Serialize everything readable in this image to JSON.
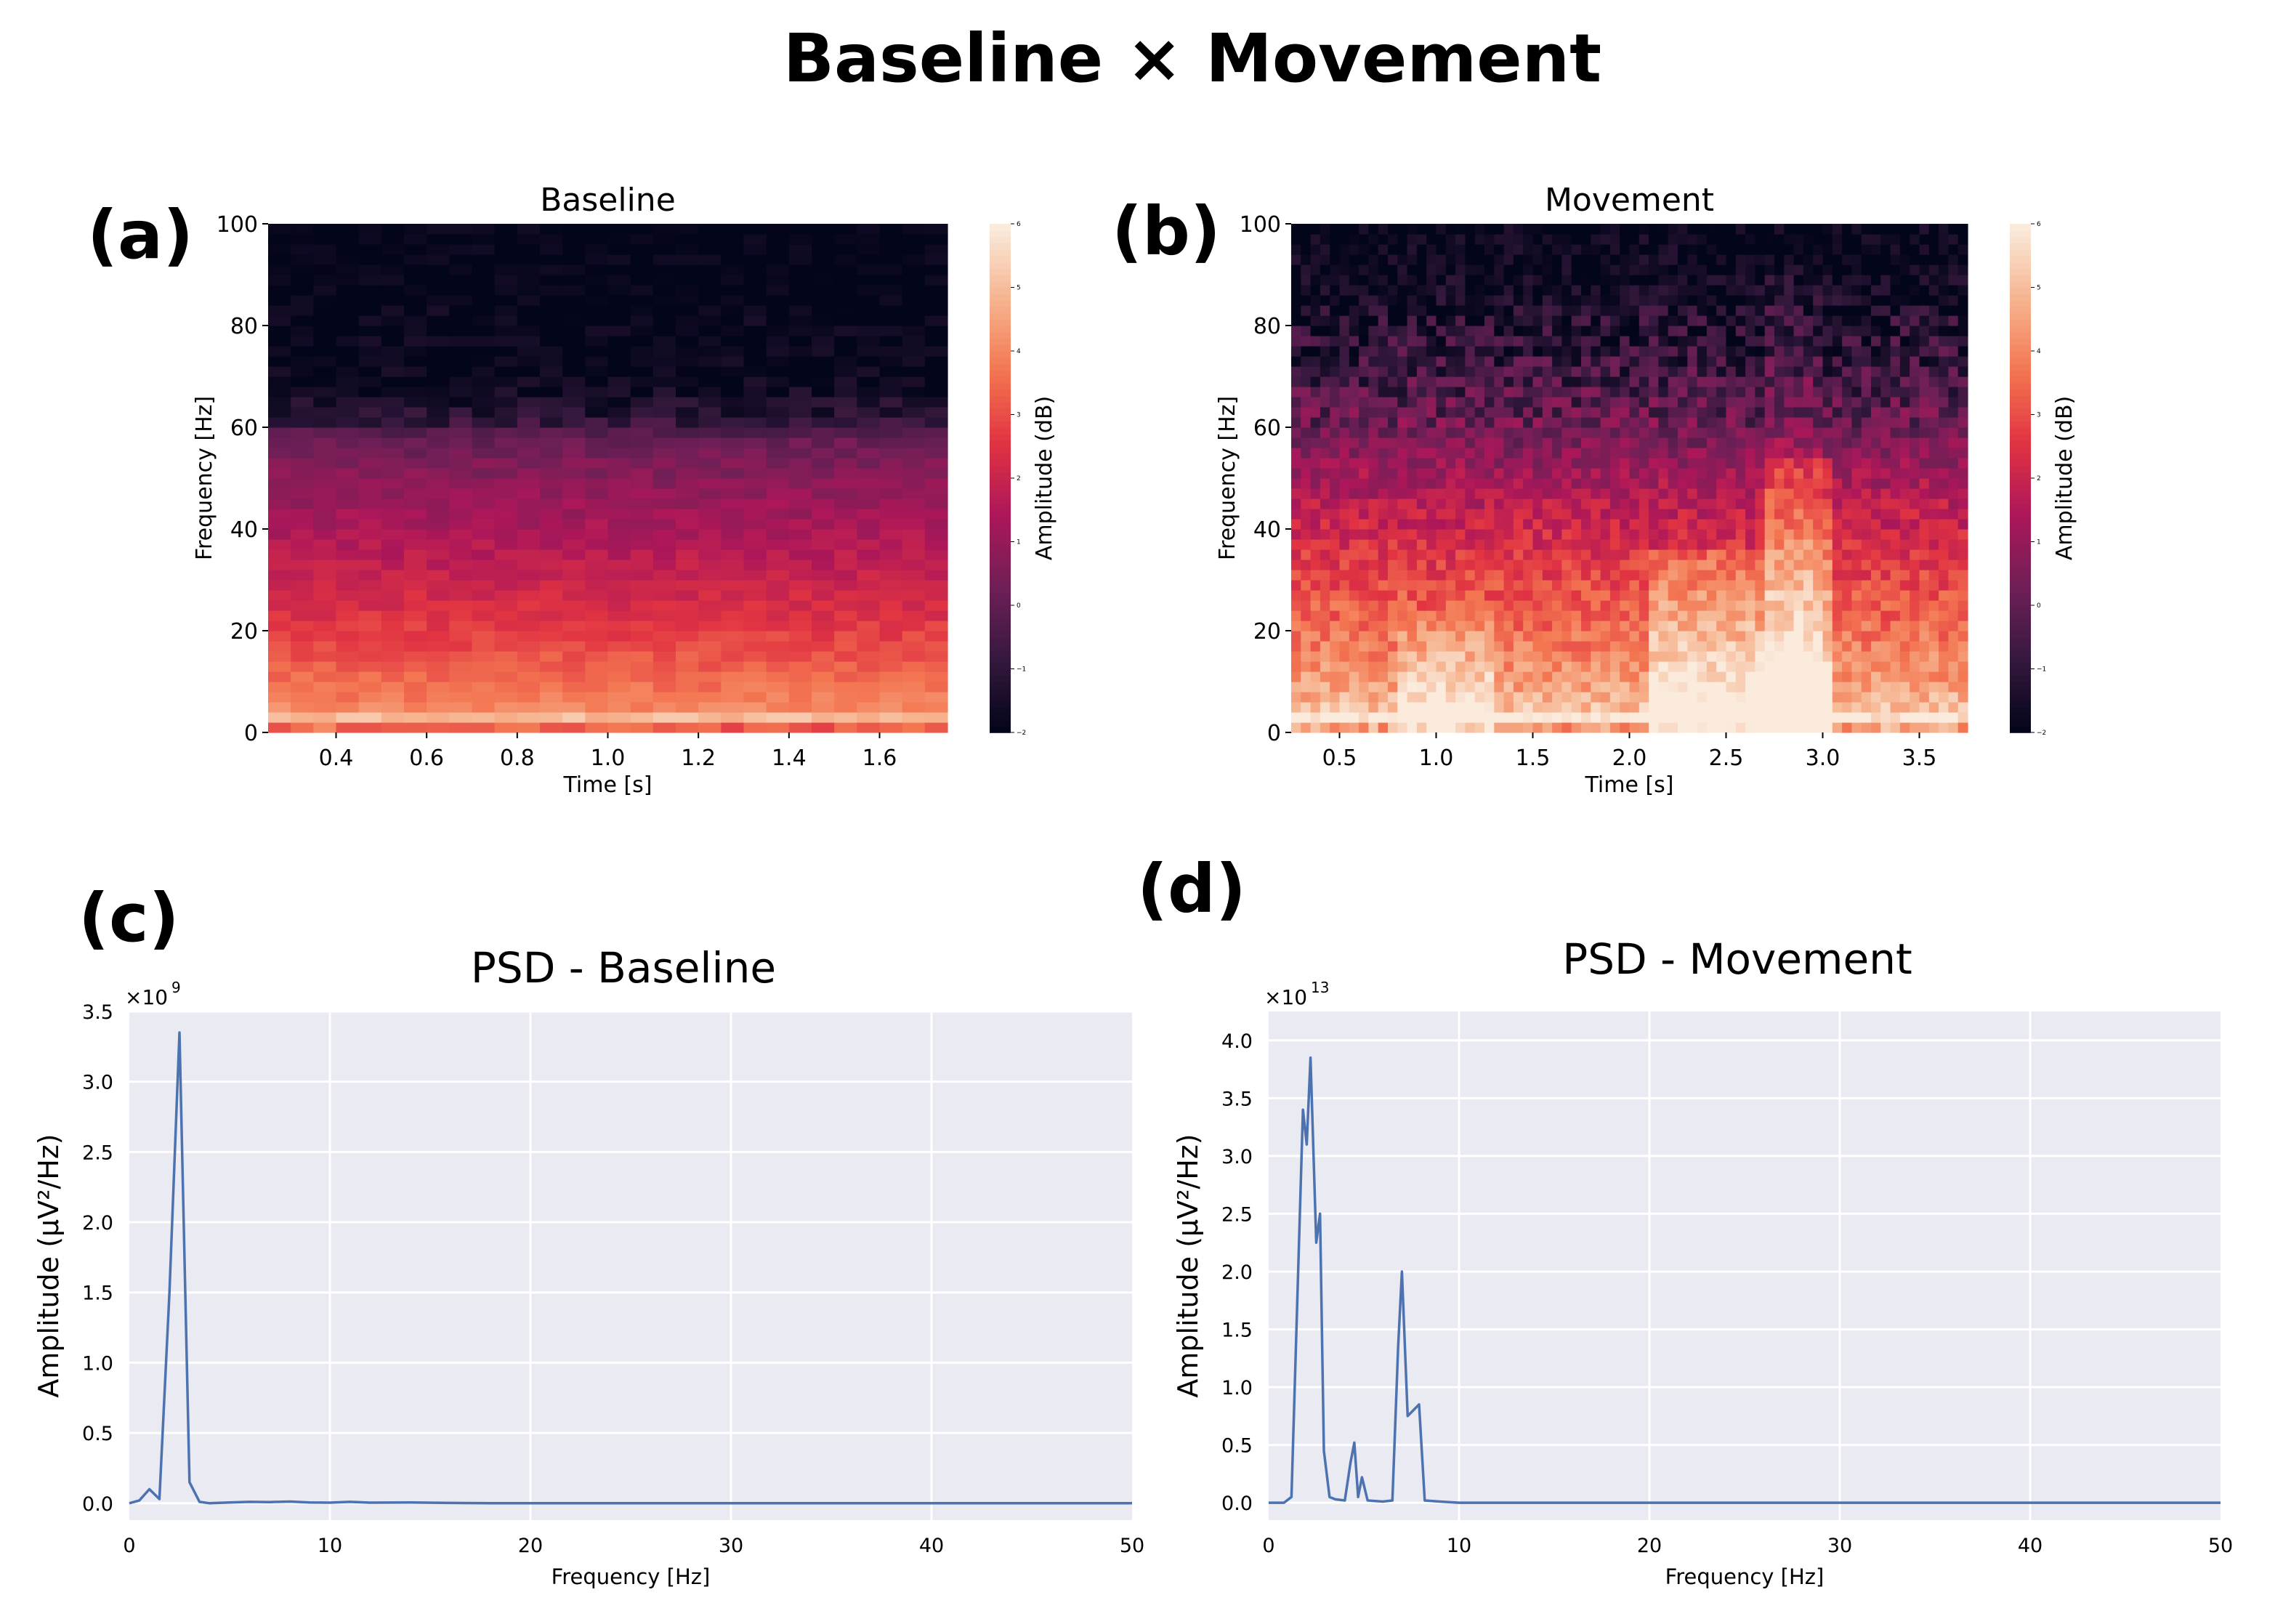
{
  "suptitle": "Baseline × Movement",
  "colors": {
    "psd_line": "#4c72b0",
    "psd_bg": "#eaeaf2",
    "grid": "#ffffff",
    "cmap": [
      "#03051a",
      "#36193e",
      "#701f57",
      "#ad1759",
      "#e13342",
      "#f37651",
      "#f6b48f",
      "#faebdd"
    ]
  },
  "chart_data": [
    {
      "id": "a",
      "panel_label": "(a)",
      "type": "heatmap",
      "title": "Baseline",
      "xlabel": "Time [s]",
      "ylabel": "Frequency [Hz]",
      "xlim": [
        0.25,
        1.75
      ],
      "ylim": [
        0,
        100
      ],
      "xticks": [
        "0.4",
        "0.6",
        "0.8",
        "1.0",
        "1.2",
        "1.4",
        "1.6"
      ],
      "xtick_values": [
        0.4,
        0.6,
        0.8,
        1.0,
        1.2,
        1.4,
        1.6
      ],
      "yticks": [
        "0",
        "20",
        "40",
        "60",
        "80",
        "100"
      ],
      "ytick_values": [
        0,
        20,
        40,
        60,
        80,
        100
      ],
      "colorbar": {
        "label": "Amplitude (dB)",
        "ticks": [
          "−2",
          "−1",
          "0",
          "1",
          "2",
          "3",
          "4",
          "5",
          "6"
        ],
        "tick_values": [
          -2,
          -1,
          0,
          1,
          2,
          3,
          4,
          5,
          6
        ],
        "range": [
          -2,
          6
        ]
      },
      "n_time": 30,
      "n_freq": 50,
      "profile": [
        [
          0,
          4.6
        ],
        [
          2,
          4.3
        ],
        [
          6,
          3.9
        ],
        [
          12,
          3.4
        ],
        [
          20,
          2.7
        ],
        [
          30,
          2.0
        ],
        [
          38,
          1.5
        ],
        [
          46,
          1.0
        ],
        [
          52,
          0.6
        ],
        [
          58,
          0.1
        ],
        [
          62,
          -1.2
        ],
        [
          70,
          -2
        ],
        [
          100,
          -2
        ]
      ],
      "bursts": [],
      "noise": 0.35
    },
    {
      "id": "b",
      "panel_label": "(b)",
      "type": "heatmap",
      "title": "Movement",
      "xlabel": "Time [s]",
      "ylabel": "Frequency [Hz]",
      "xlim": [
        0.25,
        3.75
      ],
      "ylim": [
        0,
        100
      ],
      "xticks": [
        "0.5",
        "1.0",
        "1.5",
        "2.0",
        "2.5",
        "3.0",
        "3.5"
      ],
      "xtick_values": [
        0.5,
        1.0,
        1.5,
        2.0,
        2.5,
        3.0,
        3.5
      ],
      "yticks": [
        "0",
        "20",
        "40",
        "60",
        "80",
        "100"
      ],
      "ytick_values": [
        0,
        20,
        40,
        60,
        80,
        100
      ],
      "colorbar": {
        "label": "Amplitude (dB)",
        "ticks": [
          "−2",
          "−1",
          "0",
          "1",
          "2",
          "3",
          "4",
          "5",
          "6"
        ],
        "tick_values": [
          -2,
          -1,
          0,
          1,
          2,
          3,
          4,
          5,
          6
        ],
        "range": [
          -2,
          6
        ]
      },
      "n_time": 70,
      "n_freq": 50,
      "profile": [
        [
          0,
          5.6
        ],
        [
          4,
          5.2
        ],
        [
          10,
          4.4
        ],
        [
          20,
          3.6
        ],
        [
          30,
          2.9
        ],
        [
          40,
          2.1
        ],
        [
          50,
          1.3
        ],
        [
          60,
          0.2
        ],
        [
          70,
          -0.6
        ],
        [
          80,
          -1.3
        ],
        [
          90,
          -1.8
        ],
        [
          100,
          -2
        ]
      ],
      "bursts": [
        {
          "t0": 0.8,
          "t1": 1.3,
          "fmax": 22,
          "gain": 1.3
        },
        {
          "t0": 2.1,
          "t1": 2.7,
          "fmax": 35,
          "gain": 1.8
        },
        {
          "t0": 2.7,
          "t1": 3.05,
          "fmax": 55,
          "gain": 1.9
        },
        {
          "t0": 2.7,
          "t1": 3.0,
          "fmax": 90,
          "gain": 0.7
        }
      ],
      "noise": 0.7
    },
    {
      "id": "c",
      "panel_label": "(c)",
      "type": "line",
      "title": "PSD - Baseline",
      "xlabel": "Frequency [Hz]",
      "ylabel": "Amplitude (µV²/Hz)",
      "scale_label": "×10",
      "scale_exp": "9",
      "xlim": [
        0,
        50
      ],
      "ylim": [
        -0.12,
        3.5
      ],
      "xticks": [
        "0",
        "10",
        "20",
        "30",
        "40",
        "50"
      ],
      "xtick_values": [
        0,
        10,
        20,
        30,
        40,
        50
      ],
      "yticks": [
        "0.0",
        "0.5",
        "1.0",
        "1.5",
        "2.0",
        "2.5",
        "3.0",
        "3.5"
      ],
      "ytick_values": [
        0,
        0.5,
        1.0,
        1.5,
        2.0,
        2.5,
        3.0,
        3.5
      ],
      "x": [
        0,
        0.5,
        1.0,
        1.5,
        2.0,
        2.5,
        3.0,
        3.5,
        4,
        5,
        6,
        7,
        8,
        9,
        10,
        11,
        12,
        14,
        16,
        18,
        20,
        25,
        30,
        35,
        40,
        45,
        50
      ],
      "y": [
        0.0,
        0.02,
        0.1,
        0.03,
        1.5,
        3.35,
        0.15,
        0.01,
        0.0,
        0.005,
        0.01,
        0.008,
        0.012,
        0.005,
        0.004,
        0.01,
        0.004,
        0.005,
        0.002,
        0.0,
        0.0,
        0.0,
        0.0,
        0.0,
        0.0,
        0.0,
        0.0
      ]
    },
    {
      "id": "d",
      "panel_label": "(d)",
      "type": "line",
      "title": "PSD - Movement",
      "xlabel": "Frequency [Hz]",
      "ylabel": "Amplitude (µV²/Hz)",
      "scale_label": "×10",
      "scale_exp": "13",
      "xlim": [
        0,
        50
      ],
      "ylim": [
        -0.15,
        4.25
      ],
      "xticks": [
        "0",
        "10",
        "20",
        "30",
        "40",
        "50"
      ],
      "xtick_values": [
        0,
        10,
        20,
        30,
        40,
        50
      ],
      "yticks": [
        "0.0",
        "0.5",
        "1.0",
        "1.5",
        "2.0",
        "2.5",
        "3.0",
        "3.5",
        "4.0"
      ],
      "ytick_values": [
        0,
        0.5,
        1.0,
        1.5,
        2.0,
        2.5,
        3.0,
        3.5,
        4.0
      ],
      "x": [
        0,
        0.8,
        1.2,
        1.8,
        2.0,
        2.2,
        2.5,
        2.7,
        2.9,
        3.2,
        3.5,
        4.0,
        4.3,
        4.5,
        4.7,
        4.9,
        5.2,
        6.0,
        6.5,
        6.8,
        7.0,
        7.3,
        7.6,
        7.9,
        8.2,
        9,
        10,
        20,
        30,
        40,
        50
      ],
      "y": [
        0.0,
        0.0,
        0.05,
        3.4,
        3.1,
        3.85,
        2.25,
        2.5,
        0.45,
        0.05,
        0.03,
        0.02,
        0.35,
        0.52,
        0.05,
        0.22,
        0.02,
        0.01,
        0.02,
        1.35,
        2.0,
        0.75,
        0.8,
        0.85,
        0.02,
        0.01,
        0.0,
        0.0,
        0.0,
        0.0,
        0.0
      ]
    }
  ]
}
